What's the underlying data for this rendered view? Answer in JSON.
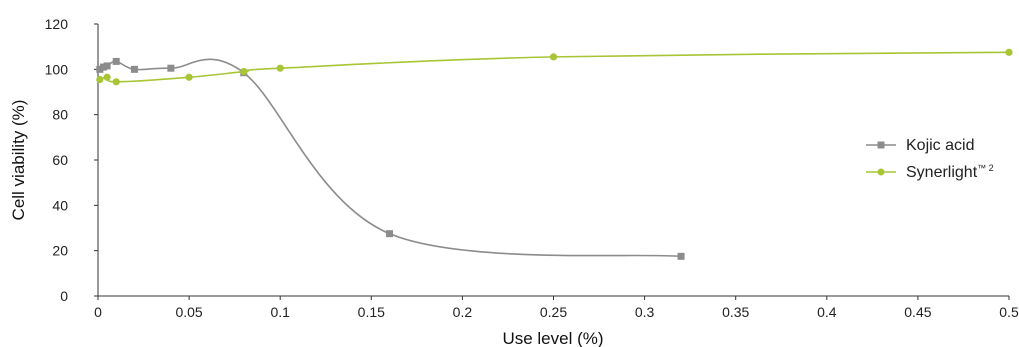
{
  "chart_data": {
    "type": "line",
    "title": "",
    "xlabel": "Use level (%)",
    "ylabel": "Cell viability (%)",
    "xlim": [
      0,
      0.5
    ],
    "ylim": [
      0,
      120
    ],
    "x_ticks": [
      "0",
      "0.05",
      "0.1",
      "0.15",
      "0.2",
      "0.25",
      "0.3",
      "0.35",
      "0.4",
      "0.45",
      "0.5"
    ],
    "y_ticks": [
      "0",
      "20",
      "40",
      "60",
      "80",
      "100",
      "120"
    ],
    "grid": false,
    "smooth": true,
    "legend_position": "right",
    "series": [
      {
        "name": "Kojic acid",
        "color": "#8c8c8c",
        "marker": "square",
        "x": [
          0.001,
          0.003,
          0.005,
          0.01,
          0.02,
          0.04,
          0.08,
          0.16,
          0.32
        ],
        "y": [
          100,
          101,
          101.5,
          103.5,
          100,
          100.5,
          98.5,
          27.5,
          17.5
        ]
      },
      {
        "name": "Synerlight™ 2",
        "color": "#a8c536",
        "marker": "circle",
        "x": [
          0.001,
          0.005,
          0.01,
          0.05,
          0.08,
          0.1,
          0.25,
          0.5
        ],
        "y": [
          95.5,
          96.5,
          94.5,
          96.5,
          99,
          100.5,
          105.5,
          107.5
        ]
      }
    ]
  },
  "legend": {
    "kojic_label": "Kojic acid",
    "synerlight_main": "Synerlight",
    "synerlight_sup": "™ 2"
  }
}
